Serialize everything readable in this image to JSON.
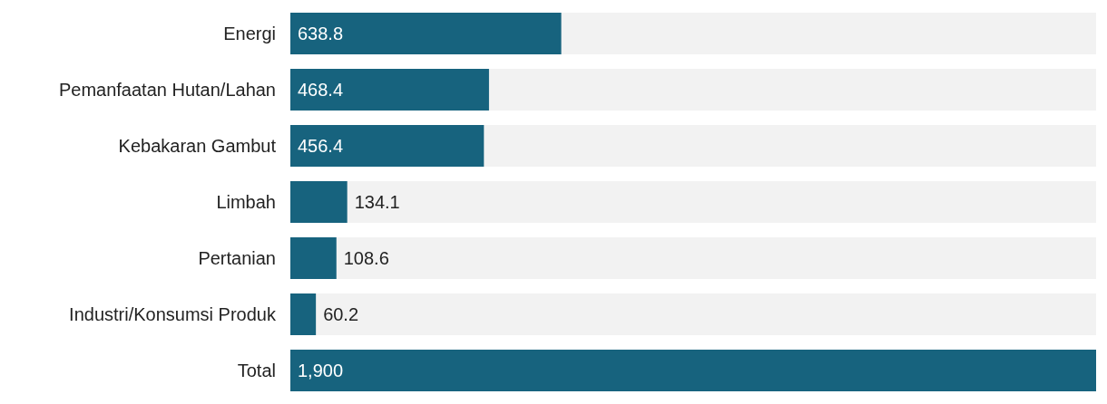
{
  "chart_data": {
    "type": "bar",
    "orientation": "horizontal",
    "categories": [
      "Energi",
      "Pemanfaatan Hutan/Lahan",
      "Kebakaran Gambut",
      "Limbah",
      "Pertanian",
      "Industri/Konsumsi Produk",
      "Total"
    ],
    "values": [
      638.8,
      468.4,
      456.4,
      134.1,
      108.6,
      60.2,
      1900
    ],
    "value_labels": [
      "638.8",
      "468.4",
      "456.4",
      "134.1",
      "108.6",
      "60.2",
      "1,900"
    ],
    "color": "#17637e",
    "grid": false,
    "legend": false
  }
}
